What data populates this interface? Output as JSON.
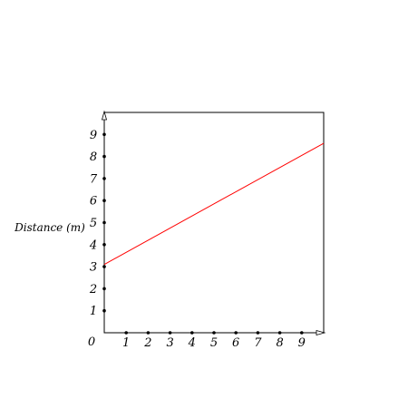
{
  "chart_data": {
    "type": "line",
    "title": "",
    "xlabel": "",
    "ylabel": "Distance (m)",
    "origin_label": "0",
    "x_ticks": [
      "1",
      "2",
      "3",
      "4",
      "5",
      "6",
      "7",
      "8",
      "9"
    ],
    "y_ticks": [
      "1",
      "2",
      "3",
      "4",
      "5",
      "6",
      "7",
      "8",
      "9"
    ],
    "xlim": [
      0,
      10
    ],
    "ylim": [
      0,
      10
    ],
    "grid": false,
    "legend": "none",
    "series": [
      {
        "color": "#ff0000",
        "x": [
          0,
          10
        ],
        "y": [
          3.1,
          8.6
        ]
      }
    ]
  },
  "colors": {
    "axis": "#000000",
    "line": "#ff0000",
    "background": "#ffffff"
  }
}
